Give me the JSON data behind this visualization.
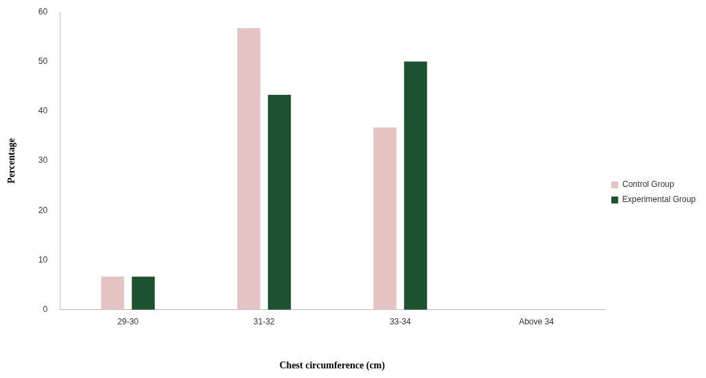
{
  "chart_data": {
    "type": "bar",
    "xlabel": "Chest circumference (cm)",
    "ylabel": "Percentage",
    "categories": [
      "29-30",
      "31-32",
      "33-34",
      "Above 34"
    ],
    "series": [
      {
        "name": "Control Group",
        "color": "#e6c3c3",
        "values": [
          6.7,
          56.7,
          36.7,
          0
        ]
      },
      {
        "name": "Experimental Group",
        "color": "#1d5230",
        "values": [
          6.7,
          43.3,
          50,
          0
        ]
      }
    ],
    "ylim": [
      0,
      60
    ],
    "yticks": [
      0,
      10,
      20,
      30,
      40,
      50,
      60
    ],
    "grid": false,
    "legend": "right"
  }
}
